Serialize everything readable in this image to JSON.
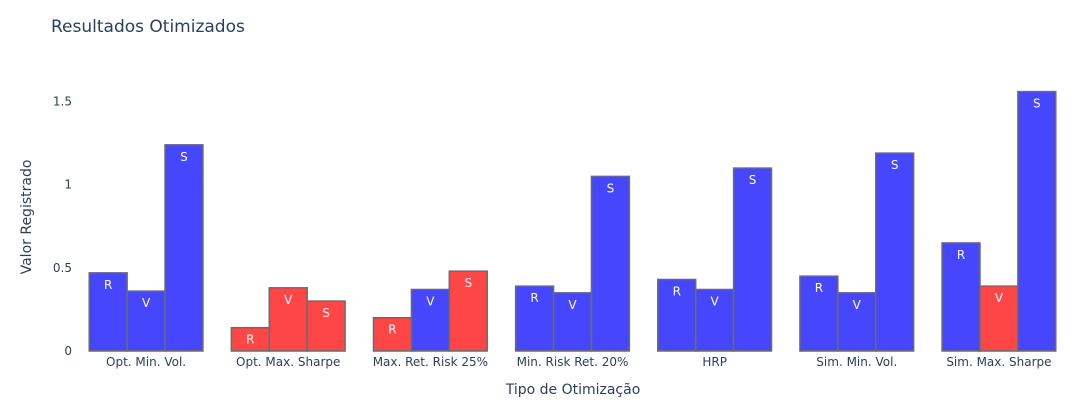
{
  "colors": {
    "blue": "#4646ff",
    "red": "#ff4646"
  },
  "chart_data": {
    "type": "bar",
    "title": "Resultados Otimizados",
    "xlabel": "Tipo de Otimização",
    "ylabel": "Valor Registrado",
    "ylim": [
      0,
      1.75
    ],
    "yticks": [
      0,
      0.5,
      1,
      1.5
    ],
    "ytick_labels": [
      "0",
      "0.5",
      "1",
      "1.5"
    ],
    "grid": false,
    "legend": "none",
    "categories": [
      "Opt. Min. Vol.",
      "Opt. Max. Sharpe",
      "Max. Ret. Risk 25%",
      "Min. Risk Ret. 20%",
      "HRP",
      "Sim. Min. Vol.",
      "Sim. Max. Sharpe"
    ],
    "series": [
      {
        "label": "R",
        "values": [
          0.47,
          0.14,
          0.2,
          0.39,
          0.43,
          0.45,
          0.65
        ],
        "colors": [
          "blue",
          "red",
          "red",
          "blue",
          "blue",
          "blue",
          "blue"
        ]
      },
      {
        "label": "V",
        "values": [
          0.36,
          0.38,
          0.37,
          0.35,
          0.37,
          0.35,
          0.39
        ],
        "colors": [
          "blue",
          "red",
          "blue",
          "blue",
          "blue",
          "blue",
          "red"
        ]
      },
      {
        "label": "S",
        "values": [
          1.24,
          0.3,
          0.48,
          1.05,
          1.1,
          1.19,
          1.56
        ],
        "colors": [
          "blue",
          "red",
          "red",
          "blue",
          "blue",
          "blue",
          "blue"
        ]
      }
    ]
  }
}
